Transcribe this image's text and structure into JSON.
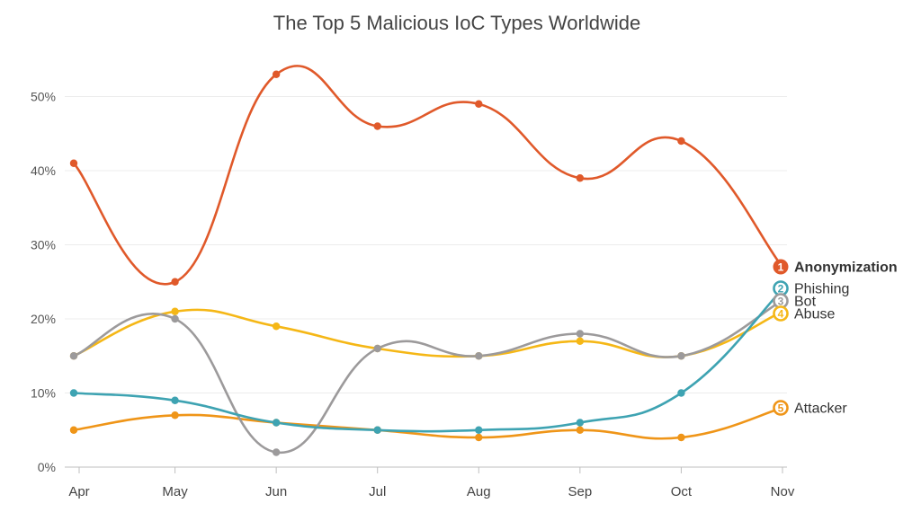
{
  "chart_data": {
    "type": "line",
    "title": "The Top 5 Malicious IoC Types Worldwide",
    "xlabel": "",
    "ylabel": "",
    "categories": [
      "Apr",
      "May",
      "Jun",
      "Jul",
      "Aug",
      "Sep",
      "Oct",
      "Nov"
    ],
    "ylim": [
      0,
      55
    ],
    "y_ticks": [
      0,
      10,
      20,
      30,
      40,
      50
    ],
    "y_tick_labels": [
      "0%",
      "10%",
      "20%",
      "30%",
      "40%",
      "50%"
    ],
    "grid": true,
    "series": [
      {
        "name": "Anonymization",
        "rank": "1",
        "color": "#e0592a",
        "bold": true,
        "values": [
          41,
          25,
          53,
          46,
          49,
          39,
          44,
          27
        ]
      },
      {
        "name": "Phishing",
        "rank": "2",
        "color": "#3ea3b2",
        "bold": false,
        "values": [
          10,
          9,
          6,
          5,
          5,
          6,
          10,
          24
        ]
      },
      {
        "name": "Bot",
        "rank": "3",
        "color": "#9c9a9b",
        "bold": false,
        "values": [
          15,
          20,
          2,
          16,
          15,
          18,
          15,
          22.5
        ]
      },
      {
        "name": "Abuse",
        "rank": "4",
        "color": "#f5b716",
        "bold": false,
        "values": [
          15,
          21,
          19,
          16,
          15,
          17,
          15,
          21
        ]
      },
      {
        "name": "Attacker",
        "rank": "5",
        "color": "#ef9518",
        "bold": false,
        "values": [
          5,
          7,
          6,
          5,
          4,
          5,
          4,
          8
        ]
      }
    ]
  }
}
